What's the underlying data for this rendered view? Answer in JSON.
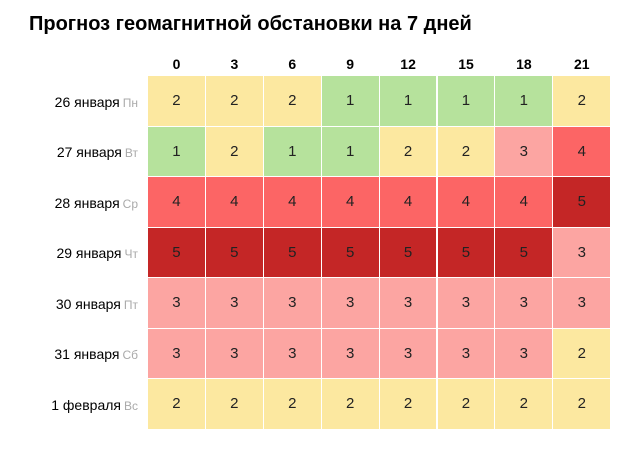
{
  "title": "Прогноз геомагнитной обстановки на 7 дней",
  "colors": {
    "1": "#b6e29c",
    "2": "#fce8a0",
    "3": "#fca5a2",
    "4": "#fc6565",
    "5": "#c42626"
  },
  "chart_data": {
    "type": "heatmap",
    "title": "Прогноз геомагнитной обстановки на 7 дней",
    "columns": [
      "0",
      "3",
      "6",
      "9",
      "12",
      "15",
      "18",
      "21"
    ],
    "rows": [
      {
        "date": "26 января",
        "weekday": "Пн",
        "values": [
          2,
          2,
          2,
          1,
          1,
          1,
          1,
          2
        ]
      },
      {
        "date": "27 января",
        "weekday": "Вт",
        "values": [
          1,
          2,
          1,
          1,
          2,
          2,
          3,
          4
        ]
      },
      {
        "date": "28 января",
        "weekday": "Ср",
        "values": [
          4,
          4,
          4,
          4,
          4,
          4,
          4,
          5
        ]
      },
      {
        "date": "29 января",
        "weekday": "Чт",
        "values": [
          5,
          5,
          5,
          5,
          5,
          5,
          5,
          3
        ]
      },
      {
        "date": "30 января",
        "weekday": "Пт",
        "values": [
          3,
          3,
          3,
          3,
          3,
          3,
          3,
          3
        ]
      },
      {
        "date": "31 января",
        "weekday": "Сб",
        "values": [
          3,
          3,
          3,
          3,
          3,
          3,
          3,
          2
        ]
      },
      {
        "date": "1 февраля",
        "weekday": "Вс",
        "values": [
          2,
          2,
          2,
          2,
          2,
          2,
          2,
          2
        ]
      }
    ]
  }
}
